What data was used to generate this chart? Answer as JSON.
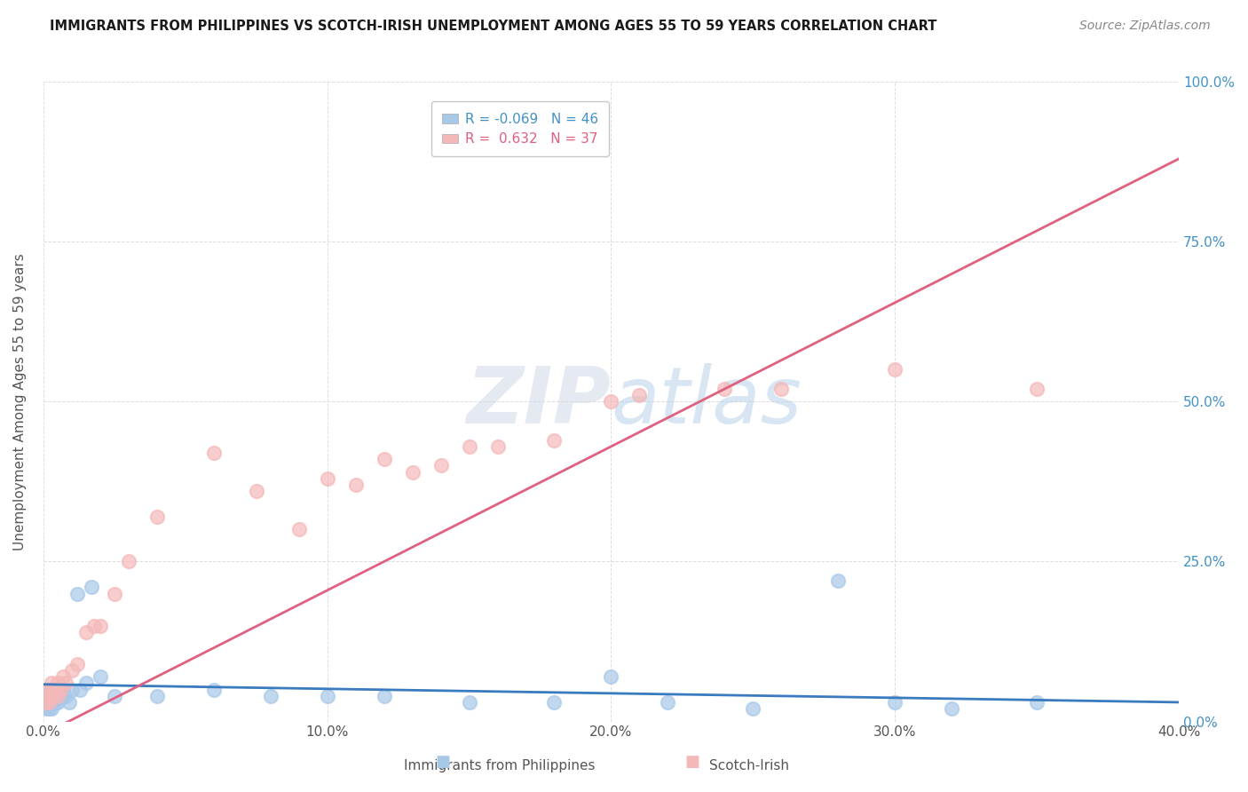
{
  "title": "IMMIGRANTS FROM PHILIPPINES VS SCOTCH-IRISH UNEMPLOYMENT AMONG AGES 55 TO 59 YEARS CORRELATION CHART",
  "source": "Source: ZipAtlas.com",
  "xlabel_bottom": "Immigrants from Philippines",
  "xlabel_right": "Scotch-Irish",
  "ylabel": "Unemployment Among Ages 55 to 59 years",
  "xlim": [
    0.0,
    0.4
  ],
  "ylim": [
    0.0,
    1.0
  ],
  "xticks": [
    0.0,
    0.1,
    0.2,
    0.3,
    0.4
  ],
  "yticks": [
    0.0,
    0.25,
    0.5,
    0.75,
    1.0
  ],
  "xtick_labels": [
    "0.0%",
    "10.0%",
    "20.0%",
    "30.0%",
    "40.0%"
  ],
  "ytick_labels": [
    "0.0%",
    "25.0%",
    "50.0%",
    "75.0%",
    "100.0%"
  ],
  "color_philippines": "#a8c8e8",
  "color_scotch_irish": "#f5b8b8",
  "color_line_philippines": "#3a7abf",
  "color_line_scotch_irish": "#e06080",
  "R_philippines": -0.069,
  "N_philippines": 46,
  "R_scotch_irish": 0.632,
  "N_scotch_irish": 37,
  "philippines_x": [
    0.0,
    0.001,
    0.001,
    0.001,
    0.001,
    0.001,
    0.002,
    0.002,
    0.002,
    0.002,
    0.002,
    0.003,
    0.003,
    0.003,
    0.003,
    0.004,
    0.004,
    0.005,
    0.005,
    0.005,
    0.006,
    0.007,
    0.007,
    0.008,
    0.009,
    0.01,
    0.012,
    0.013,
    0.015,
    0.017,
    0.02,
    0.025,
    0.04,
    0.06,
    0.08,
    0.1,
    0.12,
    0.15,
    0.18,
    0.2,
    0.22,
    0.25,
    0.28,
    0.3,
    0.32,
    0.35
  ],
  "philippines_y": [
    0.04,
    0.02,
    0.03,
    0.03,
    0.04,
    0.05,
    0.02,
    0.03,
    0.03,
    0.04,
    0.05,
    0.02,
    0.03,
    0.04,
    0.05,
    0.03,
    0.04,
    0.03,
    0.04,
    0.05,
    0.04,
    0.04,
    0.05,
    0.04,
    0.03,
    0.05,
    0.2,
    0.05,
    0.06,
    0.21,
    0.07,
    0.04,
    0.04,
    0.05,
    0.04,
    0.04,
    0.04,
    0.03,
    0.03,
    0.07,
    0.03,
    0.02,
    0.22,
    0.03,
    0.02,
    0.03
  ],
  "scotch_irish_x": [
    0.001,
    0.001,
    0.002,
    0.002,
    0.003,
    0.003,
    0.004,
    0.005,
    0.005,
    0.006,
    0.007,
    0.008,
    0.01,
    0.012,
    0.015,
    0.018,
    0.02,
    0.025,
    0.03,
    0.04,
    0.06,
    0.075,
    0.09,
    0.1,
    0.11,
    0.12,
    0.13,
    0.14,
    0.15,
    0.16,
    0.18,
    0.2,
    0.21,
    0.24,
    0.26,
    0.3,
    0.35
  ],
  "scotch_irish_y": [
    0.03,
    0.04,
    0.03,
    0.05,
    0.04,
    0.06,
    0.05,
    0.04,
    0.06,
    0.05,
    0.07,
    0.06,
    0.08,
    0.09,
    0.14,
    0.15,
    0.15,
    0.2,
    0.25,
    0.32,
    0.42,
    0.36,
    0.3,
    0.38,
    0.37,
    0.41,
    0.39,
    0.4,
    0.43,
    0.43,
    0.44,
    0.5,
    0.51,
    0.52,
    0.52,
    0.55,
    0.52
  ],
  "line_phil_x0": 0.0,
  "line_phil_x1": 0.4,
  "line_phil_y0": 0.058,
  "line_phil_y1": 0.03,
  "line_scotch_x0": 0.0,
  "line_scotch_x1": 0.4,
  "line_scotch_y0": -0.02,
  "line_scotch_y1": 0.88,
  "watermark_zip": "ZIP",
  "watermark_atlas": "atlas",
  "background_color": "#ffffff",
  "grid_color": "#dddddd"
}
